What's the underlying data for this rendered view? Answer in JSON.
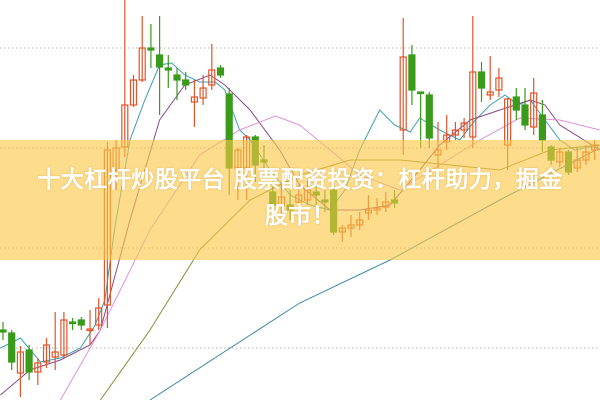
{
  "headline": {
    "line1": "十大杠杆炒股平台 股票配资投资：杠杆助力，掘金",
    "line2": "股市！"
  },
  "colors": {
    "up": "#e0552a",
    "down": "#3a9a1a",
    "grid": "#b0b0b0",
    "banner": "#fcd77a"
  },
  "chart_data": {
    "type": "candlestick",
    "title": "",
    "xlabel": "",
    "ylabel": "",
    "ylim": [
      0,
      400
    ],
    "grid": true,
    "grid_levels": [
      352,
      252,
      152,
      52
    ],
    "candles_ohlc_note": "values are [open, close, high, low] in relative price units (no axis printed)",
    "candles": [
      [
        70,
        68,
        78,
        60
      ],
      [
        67,
        38,
        70,
        30
      ],
      [
        27,
        48,
        54,
        3
      ],
      [
        50,
        28,
        55,
        20
      ],
      [
        28,
        37,
        42,
        15
      ],
      [
        38,
        55,
        62,
        32
      ],
      [
        43,
        48,
        88,
        30
      ],
      [
        45,
        80,
        88,
        42
      ],
      [
        78,
        77,
        82,
        70
      ],
      [
        80,
        75,
        83,
        70
      ],
      [
        70,
        71,
        90,
        55
      ],
      [
        75,
        92,
        102,
        70
      ],
      [
        95,
        250,
        258,
        72
      ],
      [
        230,
        252,
        260,
        210
      ],
      [
        253,
        295,
        400,
        243
      ],
      [
        295,
        320,
        325,
        293
      ],
      [
        320,
        352,
        384,
        318
      ],
      [
        352,
        350,
        376,
        332
      ],
      [
        345,
        333,
        384,
        285
      ],
      [
        332,
        330,
        345,
        312
      ],
      [
        325,
        320,
        332,
        300
      ],
      [
        320,
        315,
        328,
        310
      ],
      [
        298,
        303,
        320,
        273
      ],
      [
        302,
        312,
        325,
        295
      ],
      [
        315,
        330,
        356,
        310
      ],
      [
        332,
        325,
        335,
        322
      ],
      [
        306,
        232,
        312,
        205
      ],
      [
        232,
        250,
        252,
        200
      ],
      [
        232,
        263,
        265,
        200
      ],
      [
        263,
        235,
        265,
        218
      ],
      [
        240,
        238,
        255,
        230
      ],
      [
        208,
        195,
        220,
        192
      ],
      [
        194,
        203,
        215,
        185
      ],
      [
        195,
        190,
        210,
        180
      ],
      [
        198,
        205,
        215,
        188
      ],
      [
        200,
        210,
        220,
        195
      ],
      [
        208,
        205,
        215,
        195
      ],
      [
        200,
        198,
        210,
        188
      ],
      [
        210,
        168,
        215,
        165
      ],
      [
        168,
        172,
        175,
        158
      ],
      [
        172,
        175,
        185,
        163
      ],
      [
        175,
        180,
        188,
        170
      ],
      [
        187,
        190,
        205,
        180
      ],
      [
        190,
        192,
        202,
        185
      ],
      [
        193,
        198,
        208,
        188
      ],
      [
        200,
        197,
        210,
        192
      ],
      [
        270,
        343,
        382,
        245
      ],
      [
        345,
        310,
        355,
        295
      ],
      [
        308,
        307,
        308,
        252
      ],
      [
        305,
        262,
        308,
        252
      ],
      [
        245,
        250,
        278,
        232
      ],
      [
        258,
        265,
        285,
        250
      ],
      [
        265,
        270,
        278,
        260
      ],
      [
        270,
        277,
        282,
        262
      ],
      [
        263,
        328,
        384,
        252
      ],
      [
        328,
        312,
        338,
        298
      ],
      [
        305,
        308,
        344,
        300
      ],
      [
        310,
        322,
        332,
        303
      ],
      [
        255,
        301,
        302,
        230
      ],
      [
        303,
        290,
        312,
        280
      ],
      [
        295,
        275,
        312,
        270
      ],
      [
        273,
        307,
        322,
        265
      ],
      [
        285,
        260,
        300,
        248
      ],
      [
        253,
        240,
        255,
        235
      ],
      [
        238,
        248,
        252,
        233
      ],
      [
        248,
        228,
        250,
        225
      ],
      [
        232,
        240,
        253,
        228
      ],
      [
        240,
        248,
        255,
        235
      ],
      [
        250,
        255,
        260,
        240
      ]
    ],
    "moving_averages": [
      {
        "color": "#3aa0b0",
        "points": [
          [
            -0.3,
            52
          ],
          [
            2,
            62
          ],
          [
            4.3,
            38
          ],
          [
            6.6,
            42
          ],
          [
            8.9,
            52
          ],
          [
            10.6,
            75
          ],
          [
            11.7,
            100
          ],
          [
            12.9,
            175
          ],
          [
            14.6,
            260
          ],
          [
            16.3,
            300
          ],
          [
            18,
            335
          ],
          [
            19.4,
            337
          ],
          [
            20.9,
            325
          ],
          [
            22.6,
            318
          ],
          [
            24.4,
            318
          ],
          [
            25.5,
            310
          ],
          [
            27.2,
            270
          ],
          [
            28.4,
            260
          ],
          [
            30.7,
            230
          ],
          [
            33,
            205
          ],
          [
            35.3,
            195
          ],
          [
            37.6,
            190
          ],
          [
            39.3,
            210
          ],
          [
            41,
            250
          ],
          [
            43.3,
            290
          ],
          [
            45,
            275
          ],
          [
            46.8,
            268
          ],
          [
            47.9,
            282
          ],
          [
            50.2,
            270
          ],
          [
            52.5,
            260
          ],
          [
            54.3,
            280
          ],
          [
            56,
            295
          ],
          [
            57.7,
            305
          ],
          [
            59.2,
            295
          ],
          [
            60.6,
            300
          ],
          [
            62.3,
            280
          ],
          [
            64,
            260
          ],
          [
            65.7,
            250
          ],
          [
            68.6,
            255
          ]
        ]
      },
      {
        "color": "#8a4a8a",
        "points": [
          [
            -0.3,
            5
          ],
          [
            3.1,
            30
          ],
          [
            6.6,
            40
          ],
          [
            10,
            55
          ],
          [
            11.2,
            70
          ],
          [
            14.6,
            180
          ],
          [
            18,
            280
          ],
          [
            20.9,
            315
          ],
          [
            23.8,
            325
          ],
          [
            25.5,
            315
          ],
          [
            28.4,
            290
          ],
          [
            31.8,
            250
          ],
          [
            34.1,
            215
          ],
          [
            37.6,
            190
          ],
          [
            41,
            190
          ],
          [
            44.5,
            195
          ],
          [
            47.9,
            230
          ],
          [
            50.2,
            255
          ],
          [
            53.7,
            280
          ],
          [
            57.1,
            290
          ],
          [
            60.6,
            300
          ],
          [
            62.3,
            295
          ],
          [
            64,
            275
          ],
          [
            68.6,
            250
          ]
        ]
      },
      {
        "color": "#e090e0",
        "points": [
          [
            6.6,
            0
          ],
          [
            11.2,
            70
          ],
          [
            16.9,
            170
          ],
          [
            22.6,
            245
          ],
          [
            27.2,
            270
          ],
          [
            31.3,
            284
          ],
          [
            34.1,
            275
          ],
          [
            37.6,
            250
          ],
          [
            41,
            225
          ],
          [
            45.6,
            210
          ],
          [
            50.2,
            235
          ],
          [
            54.8,
            260
          ],
          [
            59.4,
            282
          ],
          [
            64,
            280
          ],
          [
            68.6,
            270
          ]
        ]
      },
      {
        "color": "#8a8a3a",
        "points": [
          [
            11.2,
            0
          ],
          [
            16.9,
            70
          ],
          [
            22.6,
            150
          ],
          [
            28.4,
            200
          ],
          [
            34.1,
            225
          ],
          [
            39.9,
            240
          ],
          [
            45.6,
            240
          ],
          [
            51.4,
            235
          ],
          [
            57.1,
            230
          ],
          [
            62.9,
            250
          ],
          [
            68.6,
            255
          ]
        ]
      },
      {
        "color": "#3a8aa0",
        "points": [
          [
            16.9,
            0
          ],
          [
            34.1,
            97
          ],
          [
            44.5,
            140
          ],
          [
            57.1,
            200
          ],
          [
            68.6,
            252
          ]
        ]
      }
    ]
  }
}
